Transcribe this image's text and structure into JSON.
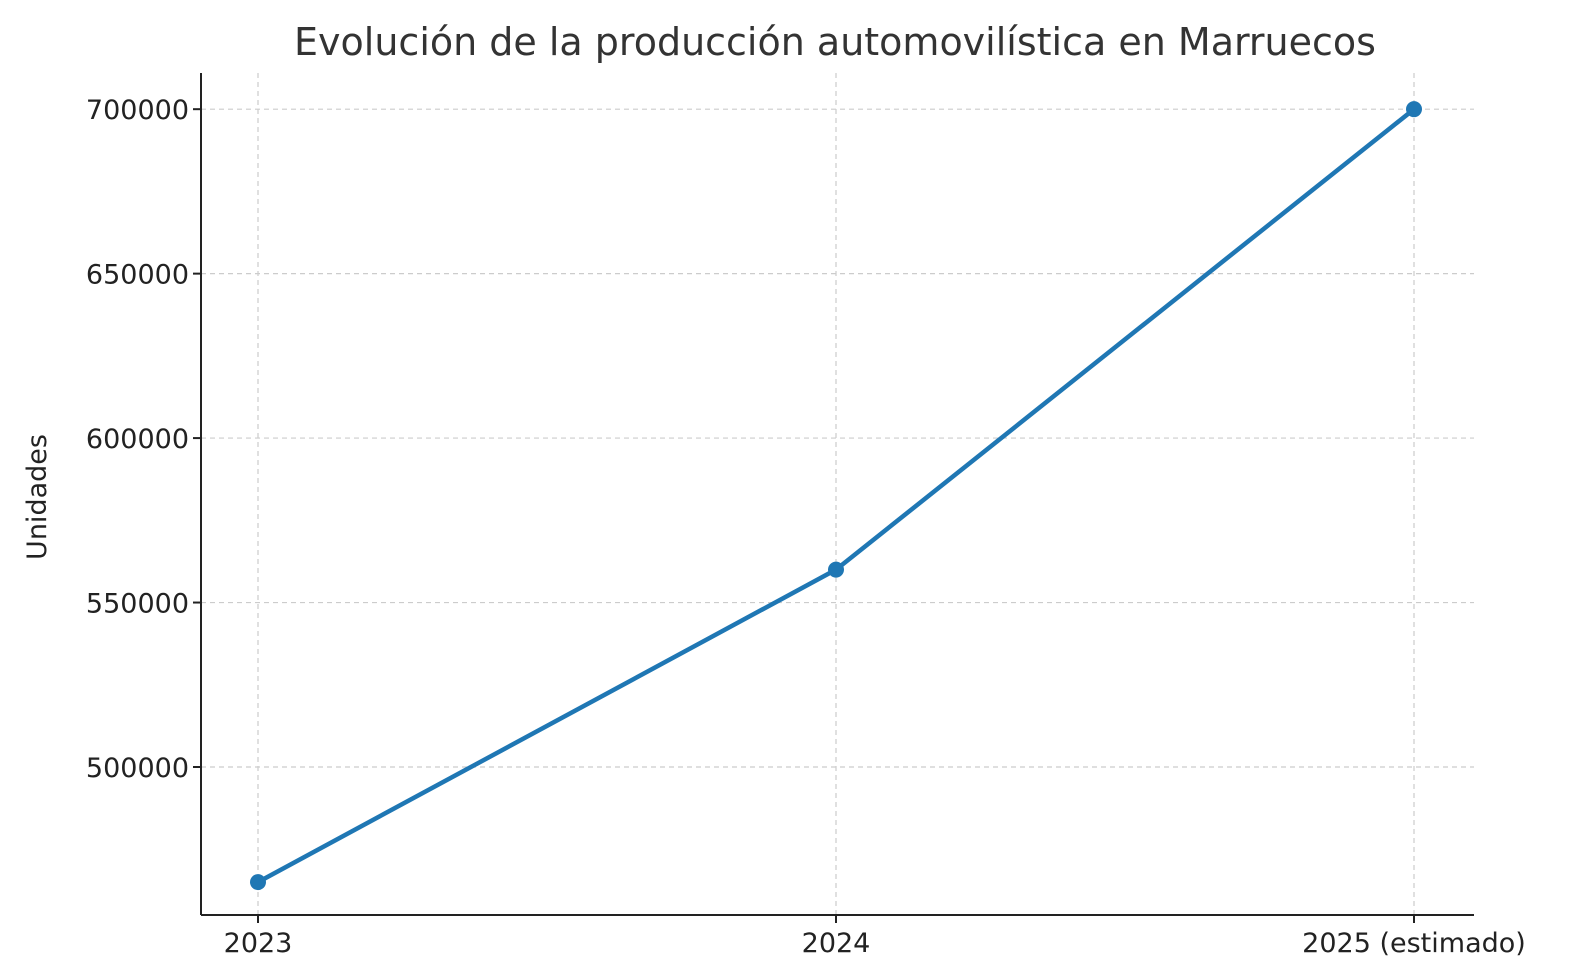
{
  "chart_data": {
    "type": "line",
    "title": "Evolución de la producción automovilística en Marruecos",
    "xlabel": "",
    "ylabel": "Unidades",
    "categories": [
      "2023",
      "2024",
      "2025 (estimado)"
    ],
    "series": [
      {
        "values": [
          465000,
          560000,
          700000
        ],
        "color": "#1f77b4"
      }
    ],
    "yticks": [
      500000,
      550000,
      600000,
      650000,
      700000
    ],
    "ylim": [
      455000,
      711000
    ],
    "grid": true,
    "marker": "circle",
    "legend": "none"
  }
}
